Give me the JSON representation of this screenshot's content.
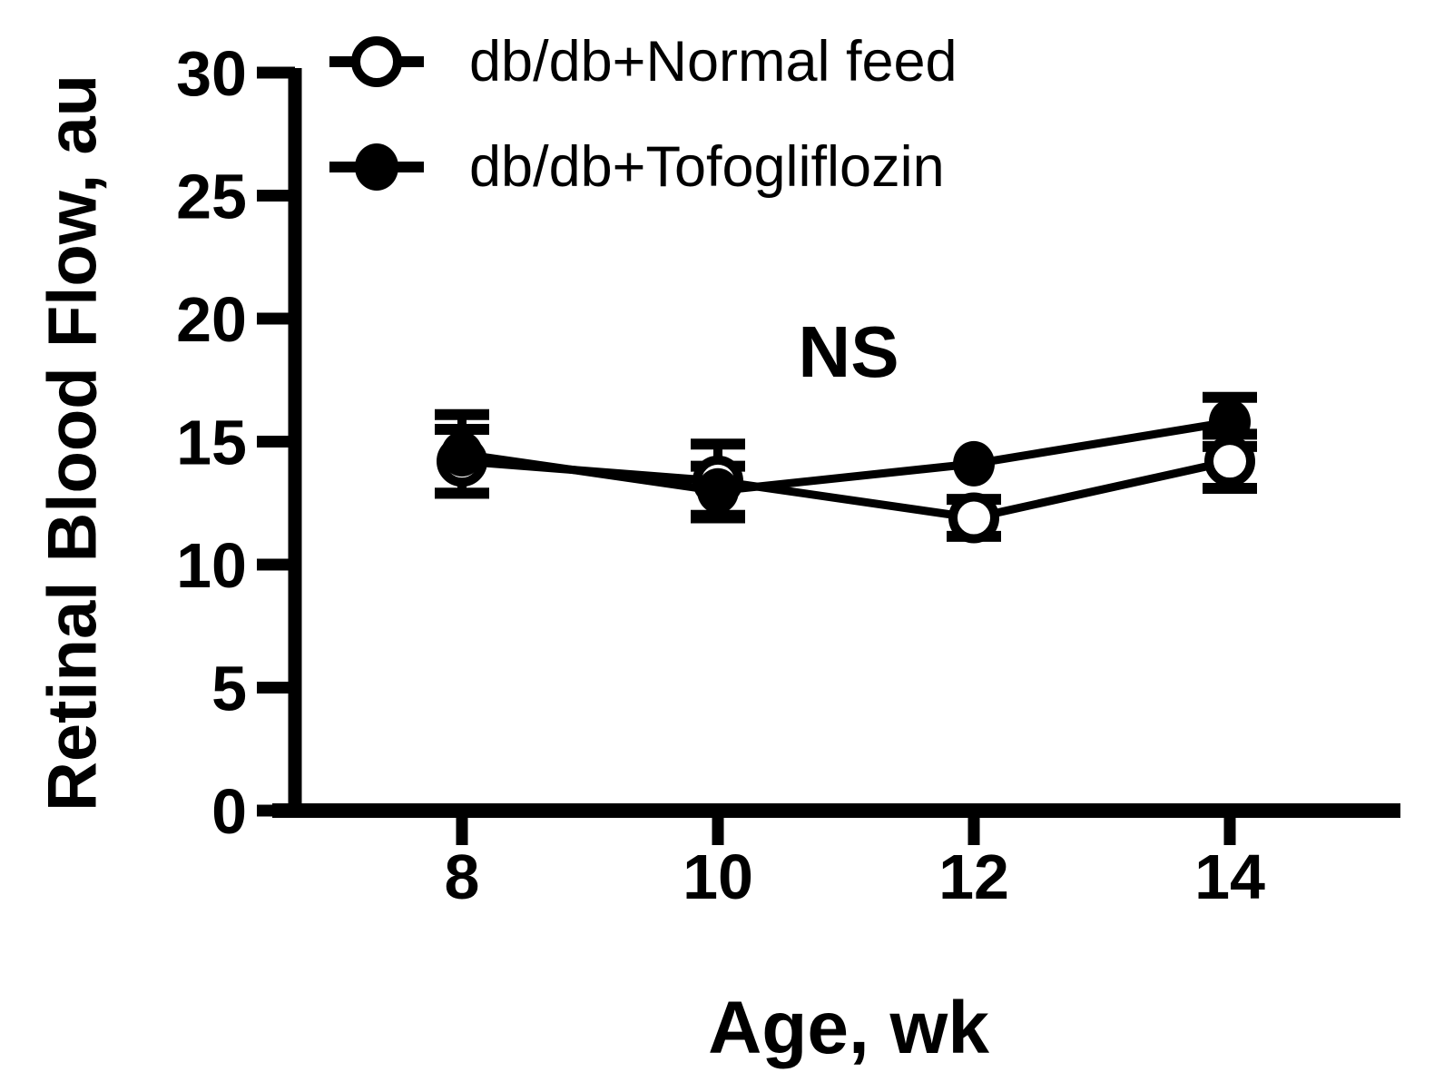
{
  "figure": {
    "background": "#ffffff",
    "ink": "#000000"
  },
  "chart_data": {
    "type": "line",
    "title": "",
    "xlabel": "Age, wk",
    "ylabel": "Retinal Blood Flow, au",
    "annotation": "NS",
    "x": [
      8,
      10,
      12,
      14
    ],
    "xticks": [
      8,
      10,
      12,
      14
    ],
    "yticks": [
      0,
      5,
      10,
      15,
      20,
      25,
      30
    ],
    "ylim": [
      0,
      30
    ],
    "grid": false,
    "legend_position": "top-left",
    "series": [
      {
        "name": "db/db+Normal feed",
        "marker": "open-circle",
        "color": "#000000",
        "values": [
          14.2,
          13.4,
          11.9,
          14.2
        ],
        "errors": [
          1.3,
          1.5,
          0.75,
          1.1
        ]
      },
      {
        "name": "db/db+Tofogliflozin",
        "marker": "filled-circle",
        "color": "#000000",
        "values": [
          14.5,
          13.0,
          14.1,
          15.8
        ],
        "errors": [
          1.6,
          1.0,
          0,
          1.0
        ]
      }
    ]
  }
}
